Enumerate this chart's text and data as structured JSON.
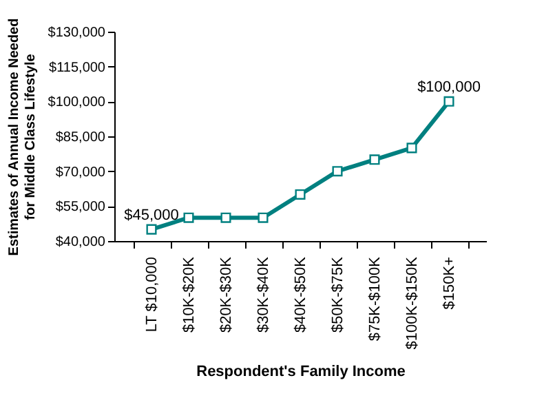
{
  "chart_data": {
    "type": "line",
    "categories": [
      "LT $10,000",
      "$10K-$20K",
      "$20K-$30K",
      "$30K-$40K",
      "$40K-$50K",
      "$50K-$75K",
      "$75K-$100K",
      "$100K-$150K",
      "$150K+"
    ],
    "series": [
      {
        "color": "#008080",
        "values": [
          45000,
          50000,
          50000,
          50000,
          60000,
          70000,
          75000,
          80000,
          100000
        ],
        "value_labels": [
          "$45,000",
          null,
          null,
          null,
          null,
          null,
          null,
          null,
          "$100,000"
        ]
      }
    ],
    "xlabel": "Respondent's Family Income",
    "ylabel": "Estimates of Annual Income Needed for Middle Class Lifestyle",
    "ylim": [
      40000,
      130000
    ],
    "yticks": [
      {
        "value": 40000,
        "label": "$40,000"
      },
      {
        "value": 55000,
        "label": "$55,000"
      },
      {
        "value": 70000,
        "label": "$70,000"
      },
      {
        "value": 85000,
        "label": "$85,000"
      },
      {
        "value": 100000,
        "label": "$100,000"
      },
      {
        "value": 115000,
        "label": "$115,000"
      },
      {
        "value": 130000,
        "label": "$130,000"
      }
    ],
    "marker": "square",
    "grid": false
  }
}
